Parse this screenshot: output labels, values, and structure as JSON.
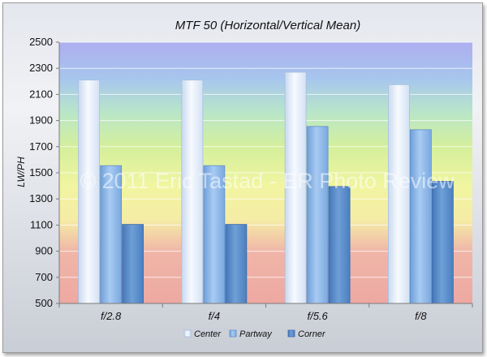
{
  "chart_data": {
    "type": "bar",
    "title": "MTF 50 (Horizontal/Vertical Mean)",
    "ylabel": "LW/PH",
    "xlabel": "",
    "ylim": [
      500,
      2500
    ],
    "yticks": [
      500,
      700,
      900,
      1100,
      1300,
      1500,
      1700,
      1900,
      2100,
      2300,
      2500
    ],
    "categories": [
      "f/2.8",
      "f/4",
      "f/5.6",
      "f/8"
    ],
    "series": [
      {
        "name": "Center",
        "values": [
          2210,
          2210,
          2270,
          2175
        ]
      },
      {
        "name": "Partway",
        "values": [
          1555,
          1555,
          1855,
          1830
        ]
      },
      {
        "name": "Corner",
        "values": [
          1105,
          1105,
          1395,
          1435
        ]
      }
    ],
    "legend": "bottom",
    "grid": true,
    "watermark": "© 2011 Eric Tastad - ER Photo Review",
    "colors": {
      "Center": "#e8f0fb",
      "Partway": "#8db8e8",
      "Corner": "#5b8fcc"
    }
  }
}
